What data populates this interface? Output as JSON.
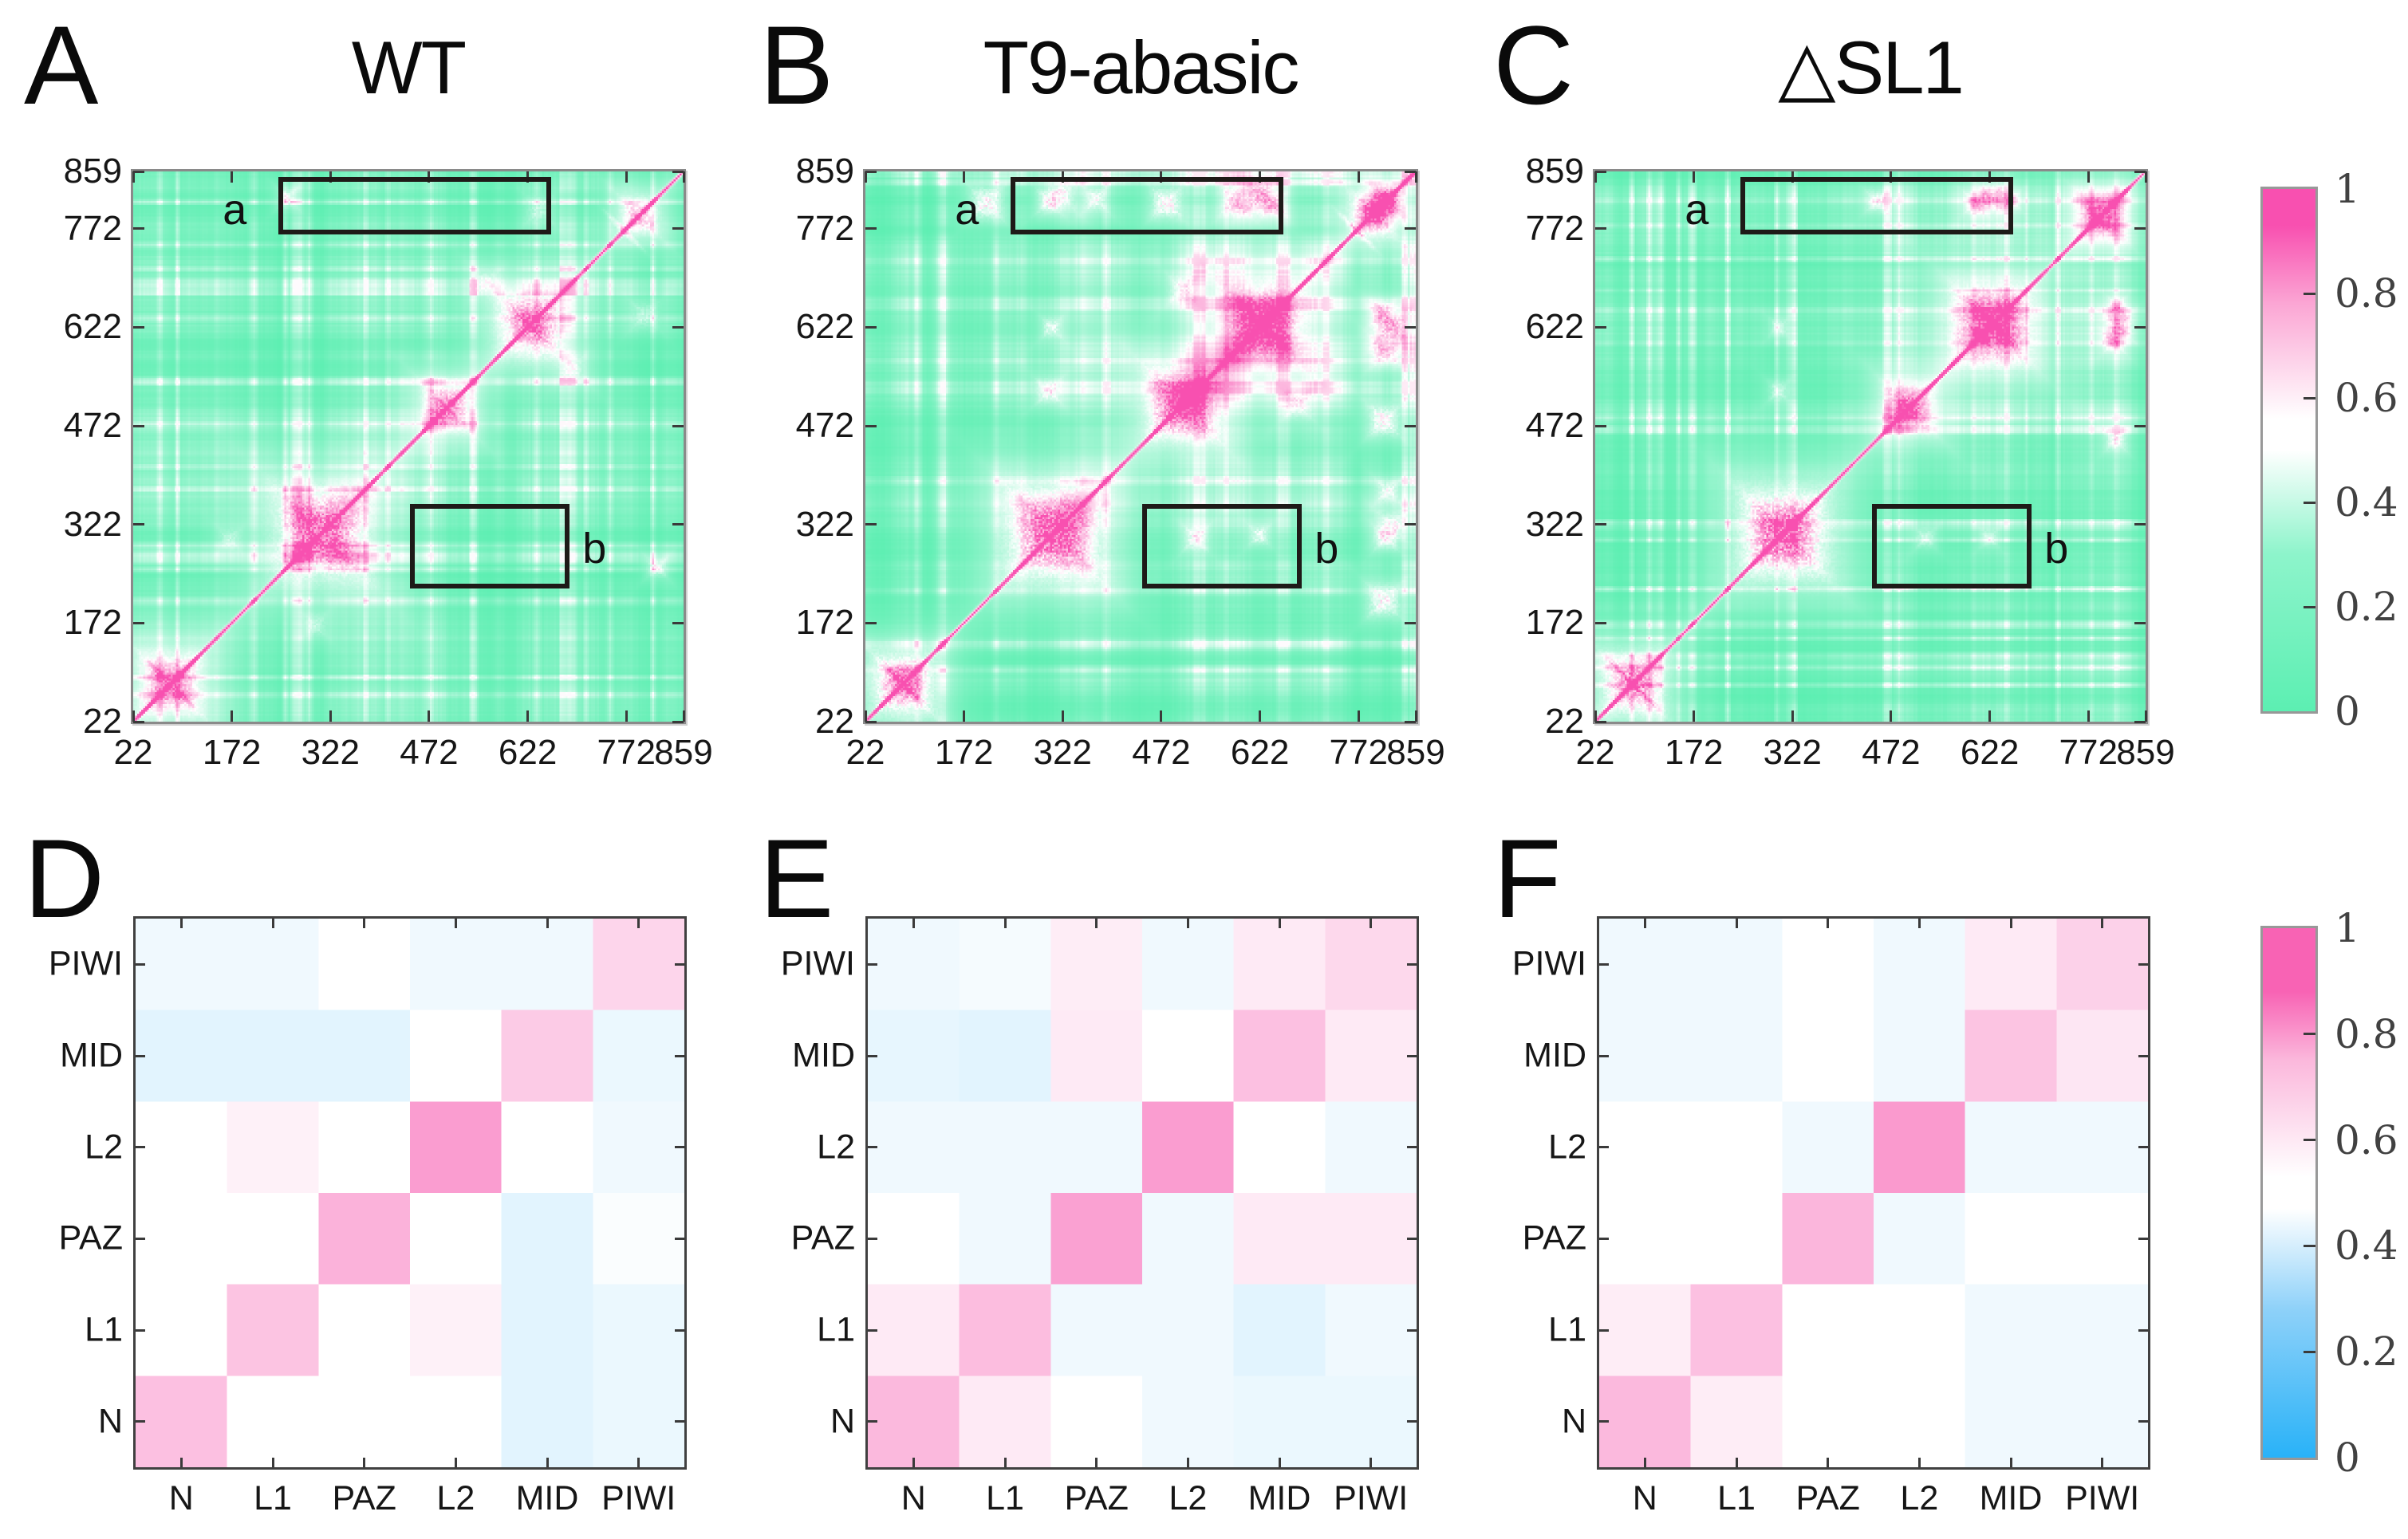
{
  "chart_data": [
    {
      "id": "A",
      "panel_letter": "A",
      "title": "WT",
      "type": "heatmap",
      "x_ticks": [
        22,
        172,
        322,
        472,
        622,
        772,
        859
      ],
      "y_ticks": [
        859,
        772,
        622,
        472,
        322,
        172,
        22
      ],
      "xlim": [
        22,
        859
      ],
      "ylim": [
        22,
        859
      ],
      "value_range": [
        0,
        1
      ],
      "colormap": {
        "0": "#5CEFB2",
        "0.5": "#FFFFFF",
        "1": "#F850B0"
      },
      "annotations": [
        {
          "label": "a",
          "label_side": "left",
          "x": [
            248,
            653
          ],
          "y": [
            768,
            846
          ]
        },
        {
          "label": "b",
          "label_side": "right",
          "x": [
            448,
            681
          ],
          "y": [
            229,
            348
          ]
        }
      ],
      "texture_seed": 11,
      "diagonal_clusters": [
        {
          "c": 78,
          "s": 24,
          "a": 0.5
        },
        {
          "c": 308,
          "s": 34,
          "a": 0.7
        },
        {
          "c": 500,
          "s": 19,
          "a": 0.5
        },
        {
          "c": 627,
          "s": 26,
          "a": 0.52
        },
        {
          "c": 793,
          "s": 15,
          "a": 0.42
        }
      ],
      "x_motifs": [
        {
          "c": 78,
          "L": 70,
          "a": 0.3
        },
        {
          "c": 627,
          "L": 50,
          "a": 0.2
        },
        {
          "c": 770,
          "L": 58,
          "a": 0.28
        }
      ],
      "cross_peaks": [
        {
          "x": 256,
          "y": 820,
          "s": 7,
          "a": 0.32
        },
        {
          "x": 640,
          "y": 802,
          "s": 11,
          "a": 0.18
        },
        {
          "x": 298,
          "y": 168,
          "s": 9,
          "a": 0.16
        },
        {
          "x": 690,
          "y": 560,
          "s": 10,
          "a": 0.16
        }
      ]
    },
    {
      "id": "B",
      "panel_letter": "B",
      "title": "T9-abasic",
      "type": "heatmap",
      "x_ticks": [
        22,
        172,
        322,
        472,
        622,
        772,
        859
      ],
      "y_ticks": [
        859,
        772,
        622,
        472,
        322,
        172,
        22
      ],
      "xlim": [
        22,
        859
      ],
      "ylim": [
        22,
        859
      ],
      "value_range": [
        0,
        1
      ],
      "colormap": {
        "0": "#5CEFB2",
        "0.5": "#FFFFFF",
        "1": "#F850B0"
      },
      "annotations": [
        {
          "label": "a",
          "label_side": "left",
          "x": [
            248,
            653
          ],
          "y": [
            768,
            846
          ]
        },
        {
          "label": "b",
          "label_side": "right",
          "x": [
            448,
            681
          ],
          "y": [
            229,
            348
          ]
        }
      ],
      "texture_seed": 29,
      "diagonal_clusters": [
        {
          "c": 78,
          "s": 24,
          "a": 0.58
        },
        {
          "c": 308,
          "s": 34,
          "a": 0.78
        },
        {
          "c": 505,
          "s": 27,
          "a": 0.72
        },
        {
          "c": 627,
          "s": 29,
          "a": 0.78
        },
        {
          "c": 795,
          "s": 17,
          "a": 0.58
        }
      ],
      "x_motifs": [
        {
          "c": 78,
          "L": 70,
          "a": 0.36
        },
        {
          "c": 627,
          "L": 55,
          "a": 0.3
        },
        {
          "c": 770,
          "L": 58,
          "a": 0.3
        }
      ],
      "cross_peaks": [
        {
          "x": 205,
          "y": 812,
          "s": 13,
          "a": 0.38
        },
        {
          "x": 300,
          "y": 816,
          "s": 9,
          "a": 0.3
        },
        {
          "x": 372,
          "y": 818,
          "s": 9,
          "a": 0.3
        },
        {
          "x": 480,
          "y": 812,
          "s": 12,
          "a": 0.38
        },
        {
          "x": 585,
          "y": 815,
          "s": 11,
          "a": 0.36
        },
        {
          "x": 645,
          "y": 810,
          "s": 9,
          "a": 0.3
        },
        {
          "x": 822,
          "y": 622,
          "s": 14,
          "a": 0.4
        },
        {
          "x": 822,
          "y": 320,
          "s": 11,
          "a": 0.28
        },
        {
          "x": 525,
          "y": 300,
          "s": 10,
          "a": 0.28
        },
        {
          "x": 622,
          "y": 305,
          "s": 8,
          "a": 0.26
        },
        {
          "x": 680,
          "y": 505,
          "s": 11,
          "a": 0.26
        },
        {
          "x": 820,
          "y": 812,
          "s": 11,
          "a": 0.32
        }
      ]
    },
    {
      "id": "C",
      "panel_letter": "C",
      "title": "△SL1",
      "type": "heatmap",
      "x_ticks": [
        22,
        172,
        322,
        472,
        622,
        772,
        859
      ],
      "y_ticks": [
        859,
        772,
        622,
        472,
        322,
        172,
        22
      ],
      "xlim": [
        22,
        859
      ],
      "ylim": [
        22,
        859
      ],
      "value_range": [
        0,
        1
      ],
      "colormap": {
        "0": "#5CEFB2",
        "0.5": "#FFFFFF",
        "1": "#F850B0"
      },
      "annotations": [
        {
          "label": "a",
          "label_side": "left",
          "x": [
            248,
            653
          ],
          "y": [
            768,
            846
          ]
        },
        {
          "label": "b",
          "label_side": "right",
          "x": [
            448,
            681
          ],
          "y": [
            229,
            348
          ]
        }
      ],
      "texture_seed": 47,
      "diagonal_clusters": [
        {
          "c": 78,
          "s": 24,
          "a": 0.54
        },
        {
          "c": 308,
          "s": 34,
          "a": 0.72
        },
        {
          "c": 500,
          "s": 19,
          "a": 0.5
        },
        {
          "c": 627,
          "s": 29,
          "a": 0.66
        },
        {
          "c": 793,
          "s": 17,
          "a": 0.52
        }
      ],
      "x_motifs": [
        {
          "c": 78,
          "L": 70,
          "a": 0.34
        },
        {
          "c": 627,
          "L": 50,
          "a": 0.26
        },
        {
          "c": 788,
          "L": 55,
          "a": 0.28
        }
      ],
      "cross_peaks": [
        {
          "x": 450,
          "y": 815,
          "s": 8,
          "a": 0.28
        },
        {
          "x": 600,
          "y": 812,
          "s": 8,
          "a": 0.28
        },
        {
          "x": 655,
          "y": 816,
          "s": 7,
          "a": 0.26
        },
        {
          "x": 820,
          "y": 625,
          "s": 11,
          "a": 0.3
        },
        {
          "x": 525,
          "y": 300,
          "s": 8,
          "a": 0.22
        },
        {
          "x": 622,
          "y": 300,
          "s": 7,
          "a": 0.22
        }
      ]
    },
    {
      "id": "D",
      "panel_letter": "D",
      "type": "heatmap",
      "columns": [
        "N",
        "L1",
        "PAZ",
        "L2",
        "MID",
        "PIWI"
      ],
      "rows_top_to_bottom": [
        "PIWI",
        "MID",
        "L2",
        "PAZ",
        "L1",
        "N"
      ],
      "value_range": [
        0,
        1
      ],
      "colormap": {
        "0": "#29B2F8",
        "0.5": "#FFFFFF",
        "1": "#F863B4"
      },
      "values_rows_top_to_bottom": [
        [
          0.47,
          0.47,
          0.5,
          0.47,
          0.47,
          0.62
        ],
        [
          0.44,
          0.44,
          0.44,
          0.5,
          0.65,
          0.46
        ],
        [
          0.5,
          0.54,
          0.5,
          0.78,
          0.5,
          0.47
        ],
        [
          0.5,
          0.5,
          0.72,
          0.5,
          0.44,
          0.49
        ],
        [
          0.5,
          0.67,
          0.5,
          0.54,
          0.44,
          0.46
        ],
        [
          0.68,
          0.5,
          0.5,
          0.5,
          0.44,
          0.46
        ]
      ]
    },
    {
      "id": "E",
      "panel_letter": "E",
      "type": "heatmap",
      "columns": [
        "N",
        "L1",
        "PAZ",
        "L2",
        "MID",
        "PIWI"
      ],
      "rows_top_to_bottom": [
        "PIWI",
        "MID",
        "L2",
        "PAZ",
        "L1",
        "N"
      ],
      "value_range": [
        0,
        1
      ],
      "colormap": {
        "0": "#29B2F8",
        "0.5": "#FFFFFF",
        "1": "#F863B4"
      },
      "values_rows_top_to_bottom": [
        [
          0.47,
          0.48,
          0.55,
          0.47,
          0.56,
          0.61
        ],
        [
          0.45,
          0.44,
          0.56,
          0.5,
          0.68,
          0.56
        ],
        [
          0.47,
          0.47,
          0.47,
          0.78,
          0.5,
          0.47
        ],
        [
          0.5,
          0.47,
          0.77,
          0.47,
          0.56,
          0.56
        ],
        [
          0.56,
          0.69,
          0.47,
          0.47,
          0.44,
          0.47
        ],
        [
          0.7,
          0.56,
          0.5,
          0.47,
          0.46,
          0.46
        ]
      ]
    },
    {
      "id": "F",
      "panel_letter": "F",
      "type": "heatmap",
      "columns": [
        "N",
        "L1",
        "PAZ",
        "L2",
        "MID",
        "PIWI"
      ],
      "rows_top_to_bottom": [
        "PIWI",
        "MID",
        "L2",
        "PAZ",
        "L1",
        "N"
      ],
      "value_range": [
        0,
        1
      ],
      "colormap": {
        "0": "#29B2F8",
        "0.5": "#FFFFFF",
        "1": "#F863B4"
      },
      "values_rows_top_to_bottom": [
        [
          0.47,
          0.47,
          0.5,
          0.47,
          0.56,
          0.63
        ],
        [
          0.47,
          0.47,
          0.5,
          0.47,
          0.67,
          0.57
        ],
        [
          0.5,
          0.5,
          0.47,
          0.79,
          0.47,
          0.47
        ],
        [
          0.5,
          0.5,
          0.71,
          0.47,
          0.5,
          0.5
        ],
        [
          0.55,
          0.68,
          0.5,
          0.5,
          0.47,
          0.47
        ],
        [
          0.7,
          0.55,
          0.5,
          0.5,
          0.47,
          0.47
        ]
      ]
    }
  ],
  "colorbars": [
    {
      "id": "top",
      "ticks": [
        "1",
        "0.8",
        "0.6",
        "0.4",
        "0.2",
        "0"
      ],
      "low": "#5CEFB2",
      "mid": "#FFFFFF",
      "high": "#F850B0"
    },
    {
      "id": "bottom",
      "ticks": [
        "1",
        "0.8",
        "0.6",
        "0.4",
        "0.2",
        "0"
      ],
      "low": "#29B2F8",
      "mid": "#FFFFFF",
      "high": "#F863B4"
    }
  ]
}
